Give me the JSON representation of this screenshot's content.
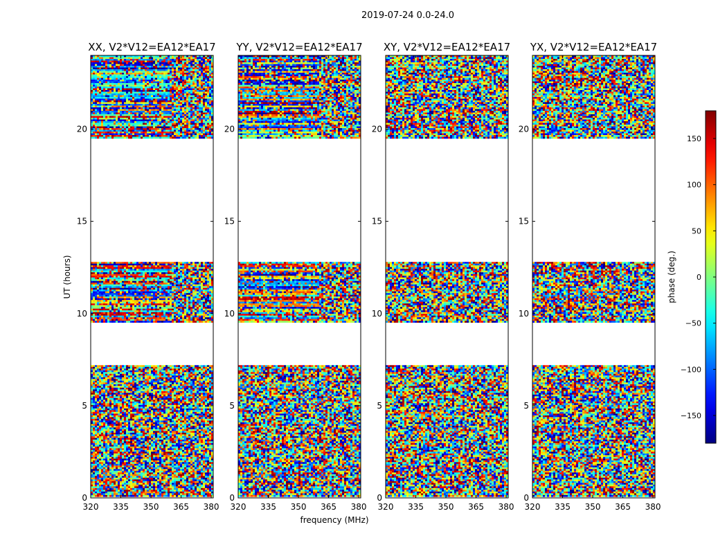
{
  "figure": {
    "suptitle": "2019-07-24 0.0-24.0",
    "ylabel": "UT (hours)",
    "xlabel": "frequency (MHz)",
    "colorbar_label": "phase (deg.)"
  },
  "chart_data": {
    "type": "heatmap",
    "colormap": "jet",
    "vmin": -180,
    "vmax": 180,
    "colorbar_ticks": [
      "150",
      "100",
      "50",
      "0",
      "−50",
      "−100",
      "−150"
    ],
    "colorbar_tick_values": [
      150,
      100,
      50,
      0,
      -50,
      -100,
      -150
    ],
    "xlim": [
      320,
      381
    ],
    "ylim": [
      0,
      24
    ],
    "x_ticks": [
      "320",
      "335",
      "350",
      "365",
      "380"
    ],
    "x_tick_values": [
      320,
      335,
      350,
      365,
      380
    ],
    "y_ticks": [
      "0",
      "5",
      "10",
      "15",
      "20"
    ],
    "y_tick_values": [
      0,
      5,
      10,
      15,
      20
    ],
    "data_blocks_ut": [
      [
        0.0,
        7.2
      ],
      [
        9.5,
        12.8
      ],
      [
        19.4,
        24.0
      ]
    ],
    "panels": [
      {
        "title": "XX, V2*V12=EA12*EA17"
      },
      {
        "title": "YY, V2*V12=EA12*EA17"
      },
      {
        "title": "XY, V2*V12=EA12*EA17"
      },
      {
        "title": "YX, V2*V12=EA12*EA17"
      }
    ]
  }
}
